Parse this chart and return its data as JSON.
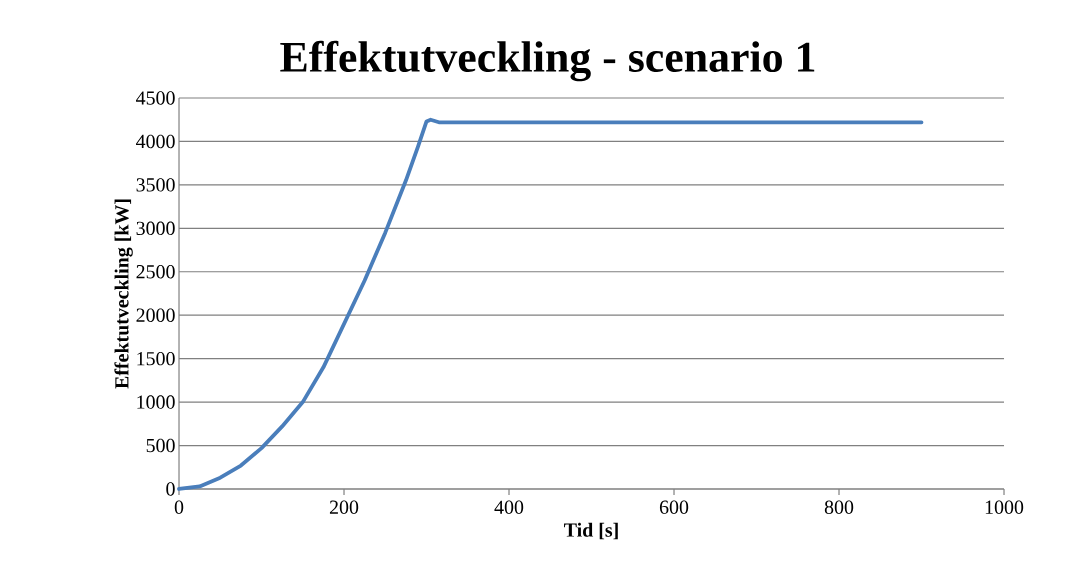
{
  "chart_data": {
    "type": "line",
    "title": "Effektutveckling - scenario 1",
    "xlabel": "Tid [s]",
    "ylabel": "Effektutveckling [kW]",
    "x": [
      0,
      25,
      50,
      75,
      100,
      125,
      150,
      175,
      200,
      225,
      250,
      275,
      290,
      300,
      305,
      315,
      900
    ],
    "series": [
      {
        "color": "#4a7ebb",
        "values": [
          0,
          30,
          130,
          270,
          470,
          720,
          1000,
          1400,
          1900,
          2400,
          2950,
          3550,
          3950,
          4230,
          4250,
          4220,
          4220
        ]
      }
    ],
    "xlim": [
      0,
      1000
    ],
    "ylim": [
      0,
      4500
    ],
    "xticks": [
      0,
      200,
      400,
      600,
      800,
      1000
    ],
    "yticks": [
      0,
      500,
      1000,
      1500,
      2000,
      2500,
      3000,
      3500,
      4000,
      4500
    ],
    "grid": "y"
  }
}
